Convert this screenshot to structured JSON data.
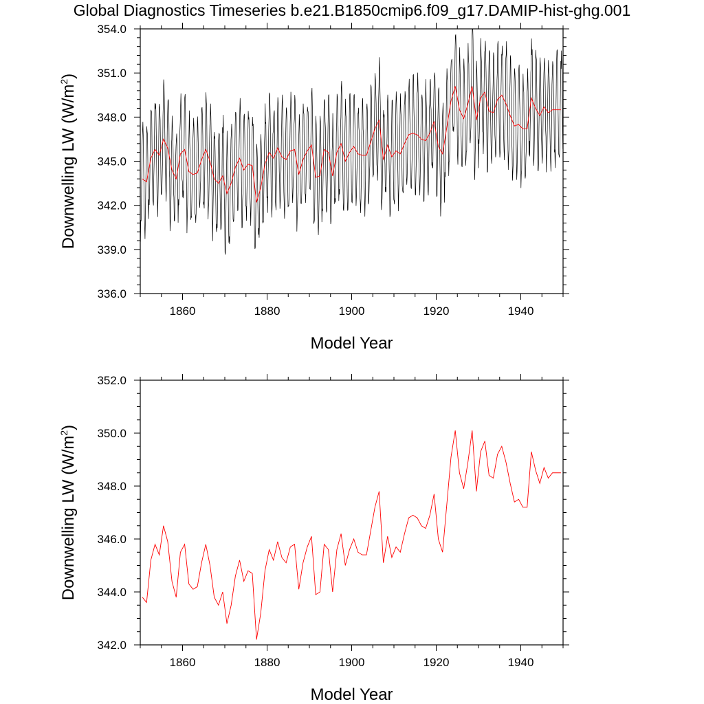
{
  "title": "Global Diagnostics Timeseries b.e21.B1850cmip6.f09_g17.DAMIP-hist-ghg.001",
  "chart_data": [
    {
      "type": "line",
      "xlabel": "Model Year",
      "ylabel_main": "Downwelling LW (W/m",
      "ylabel_sup": "2",
      "ylabel_tail": ")",
      "xlim": [
        1850,
        1950
      ],
      "ylim": [
        336.0,
        354.0
      ],
      "xticks": [
        1860,
        1880,
        1900,
        1920,
        1940
      ],
      "yticks": [
        "336.0",
        "339.0",
        "342.0",
        "345.0",
        "348.0",
        "351.0",
        "354.0"
      ],
      "series": [
        {
          "type": "monthly",
          "color": "#000000",
          "amplitude": 3.6
        },
        {
          "type": "annual",
          "color": "#ff0000",
          "x": [
            1850.5,
            1851.5,
            1852.5,
            1853.5,
            1854.5,
            1855.5,
            1856.5,
            1857.5,
            1858.5,
            1859.5,
            1860.5,
            1861.5,
            1862.5,
            1863.5,
            1864.5,
            1865.5,
            1866.5,
            1867.5,
            1868.5,
            1869.5,
            1870.5,
            1871.5,
            1872.5,
            1873.5,
            1874.5,
            1875.5,
            1876.5,
            1877.5,
            1878.5,
            1879.5,
            1880.5,
            1881.5,
            1882.5,
            1883.5,
            1884.5,
            1885.5,
            1886.5,
            1887.5,
            1888.5,
            1889.5,
            1890.5,
            1891.5,
            1892.5,
            1893.5,
            1894.5,
            1895.5,
            1896.5,
            1897.5,
            1898.5,
            1899.5,
            1900.5,
            1901.5,
            1902.5,
            1903.5,
            1904.5,
            1905.5,
            1906.5,
            1907.5,
            1908.5,
            1909.5,
            1910.5,
            1911.5,
            1912.5,
            1913.5,
            1914.5,
            1915.5,
            1916.5,
            1917.5,
            1918.5,
            1919.5,
            1920.5,
            1921.5,
            1922.5,
            1923.5,
            1924.5,
            1925.5,
            1926.5,
            1927.5,
            1928.5,
            1929.5,
            1930.5,
            1931.5,
            1932.5,
            1933.5,
            1934.5,
            1935.5,
            1936.5,
            1937.5,
            1938.5,
            1939.5,
            1940.5,
            1941.5,
            1942.5,
            1943.5,
            1944.5,
            1945.5,
            1946.5,
            1947.5,
            1948.5,
            1949.5
          ],
          "values": [
            343.8,
            343.6,
            345.2,
            345.8,
            345.4,
            346.5,
            345.9,
            344.4,
            343.8,
            345.5,
            345.8,
            344.3,
            344.1,
            344.2,
            345.1,
            345.8,
            345.0,
            343.8,
            343.5,
            344.0,
            342.8,
            343.5,
            344.6,
            345.2,
            344.4,
            344.8,
            344.7,
            342.2,
            343.2,
            344.8,
            345.6,
            345.2,
            345.9,
            345.3,
            345.1,
            345.7,
            345.8,
            344.1,
            345.1,
            345.7,
            346.1,
            343.9,
            344.0,
            345.8,
            345.6,
            344.0,
            345.6,
            346.2,
            345.0,
            345.6,
            346.0,
            345.5,
            345.4,
            345.4,
            346.3,
            347.2,
            347.8,
            345.1,
            346.1,
            345.3,
            345.7,
            345.5,
            346.2,
            346.8,
            346.9,
            346.8,
            346.5,
            346.4,
            346.9,
            347.7,
            346.0,
            345.5,
            347.3,
            349.1,
            350.1,
            348.5,
            347.9,
            348.9,
            350.1,
            347.8,
            349.3,
            349.7,
            348.4,
            348.3,
            349.2,
            349.5,
            348.9,
            348.1,
            347.4,
            347.5,
            347.2,
            347.2,
            349.3,
            348.6,
            348.1,
            348.7,
            348.3,
            348.5,
            348.5,
            348.5
          ]
        }
      ]
    },
    {
      "type": "line",
      "xlabel": "Model Year",
      "ylabel_main": "Downwelling LW (W/m",
      "ylabel_sup": "2",
      "ylabel_tail": ")",
      "xlim": [
        1850,
        1950
      ],
      "ylim": [
        342.0,
        352.0
      ],
      "xticks": [
        1860,
        1880,
        1900,
        1920,
        1940
      ],
      "yticks": [
        "342.0",
        "344.0",
        "346.0",
        "348.0",
        "350.0",
        "352.0"
      ],
      "series": [
        {
          "type": "annual",
          "color": "#ff0000",
          "source": 0
        }
      ]
    }
  ]
}
